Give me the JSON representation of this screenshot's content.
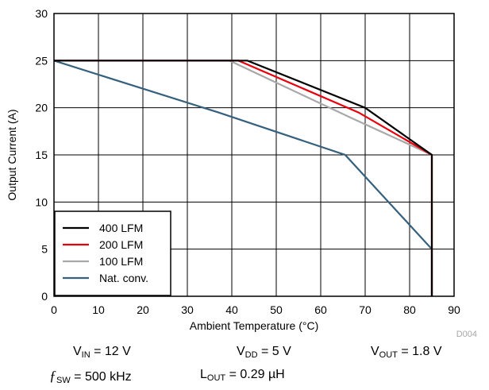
{
  "chart_data": {
    "type": "line",
    "xlabel": "Ambient Temperature (°C)",
    "ylabel": "Output Current (A)",
    "xlim": [
      0,
      90
    ],
    "ylim": [
      0,
      30
    ],
    "xticks": [
      "0",
      "10",
      "20",
      "30",
      "40",
      "50",
      "60",
      "70",
      "80",
      "90"
    ],
    "yticks": [
      "0",
      "5",
      "10",
      "15",
      "20",
      "25",
      "30"
    ],
    "grid": true,
    "legend_position": "bottom-left",
    "figure_id": "D004",
    "series": [
      {
        "name": "400 LFM",
        "color": "#000000",
        "x": [
          0,
          43.5,
          70,
          85,
          85
        ],
        "y": [
          25,
          25,
          20,
          15,
          0
        ]
      },
      {
        "name": "200 LFM",
        "color": "#e8000b",
        "x": [
          0,
          41.5,
          68.5,
          85,
          85
        ],
        "y": [
          25,
          25,
          19.5,
          15,
          0
        ]
      },
      {
        "name": "100 LFM",
        "color": "#a8a8a8",
        "x": [
          0,
          39.5,
          66.5,
          85,
          85
        ],
        "y": [
          25,
          25,
          19,
          15,
          0
        ]
      },
      {
        "name": "Nat. conv.",
        "color": "#35607e",
        "x": [
          0,
          37,
          65.5,
          85,
          85
        ],
        "y": [
          25,
          19.5,
          15,
          5,
          0
        ]
      }
    ]
  },
  "conditions": {
    "vin_sym": "V",
    "vin_sub": "IN",
    "vin_val": " = 12 V",
    "vdd_sym": "V",
    "vdd_sub": "DD",
    "vdd_val": " = 5 V",
    "vout_sym": "V",
    "vout_sub": "OUT",
    "vout_val": " = 1.8 V",
    "fsw_sym": "ƒ",
    "fsw_sub": "SW",
    "fsw_val": " = 500 kHz",
    "lout_sym": "L",
    "lout_sub": "OUT",
    "lout_val": " = 0.29 µH"
  }
}
